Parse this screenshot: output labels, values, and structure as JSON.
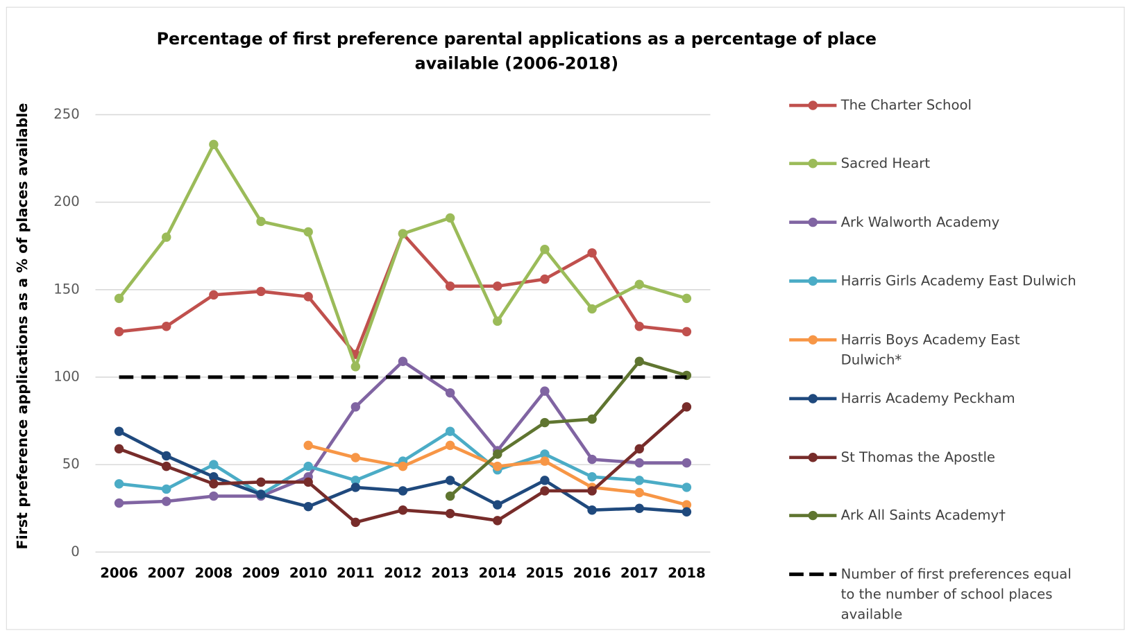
{
  "chart_data": {
    "type": "line",
    "title": "Percentage of first preference parental applications as a percentage of place available (2006-2018)",
    "y_label": "First preference applications as a % of places available",
    "categories": [
      "2006",
      "2007",
      "2008",
      "2009",
      "2010",
      "2011",
      "2012",
      "2013",
      "2014",
      "2015",
      "2016",
      "2017",
      "2018"
    ],
    "ylim": [
      0,
      250
    ],
    "yticks": [
      0,
      50,
      100,
      150,
      200,
      250
    ],
    "grid": true,
    "legend": "right",
    "series": [
      {
        "name": "The Charter School",
        "color": "#c0504d",
        "values": [
          126,
          129,
          147,
          149,
          146,
          113,
          182,
          152,
          152,
          156,
          171,
          129,
          126
        ]
      },
      {
        "name": "Sacred Heart",
        "color": "#9bbb59",
        "values": [
          145,
          180,
          233,
          189,
          183,
          106,
          182,
          191,
          132,
          173,
          139,
          153,
          145
        ]
      },
      {
        "name": "Ark Walworth Academy",
        "color": "#8064a2",
        "values": [
          28,
          29,
          32,
          32,
          43,
          83,
          109,
          91,
          58,
          92,
          53,
          51,
          51
        ]
      },
      {
        "name": "Harris Girls Academy East Dulwich",
        "color": "#4bacc6",
        "values": [
          39,
          36,
          50,
          33,
          49,
          41,
          52,
          69,
          47,
          56,
          43,
          41,
          37
        ]
      },
      {
        "name": "Harris Boys Academy East Dulwich*",
        "color": "#f79646",
        "values": [
          null,
          null,
          null,
          null,
          61,
          54,
          49,
          61,
          49,
          52,
          37,
          34,
          27
        ]
      },
      {
        "name": "Harris Academy Peckham",
        "color": "#1f497d",
        "values": [
          69,
          55,
          43,
          33,
          26,
          37,
          35,
          41,
          27,
          41,
          24,
          25,
          23
        ]
      },
      {
        "name": "St Thomas the Apostle",
        "color": "#772c2a",
        "values": [
          59,
          49,
          39,
          40,
          40,
          17,
          24,
          22,
          18,
          35,
          35,
          59,
          83
        ]
      },
      {
        "name": "Ark All Saints Academy†",
        "color": "#5f7530",
        "values": [
          null,
          null,
          null,
          null,
          null,
          null,
          null,
          32,
          56,
          74,
          76,
          109,
          101
        ]
      },
      {
        "name": "Number of first preferences equal to the number of school places available",
        "color": "#000000",
        "dash": true,
        "values": [
          100,
          100,
          100,
          100,
          100,
          100,
          100,
          100,
          100,
          100,
          100,
          100,
          100
        ]
      }
    ]
  }
}
